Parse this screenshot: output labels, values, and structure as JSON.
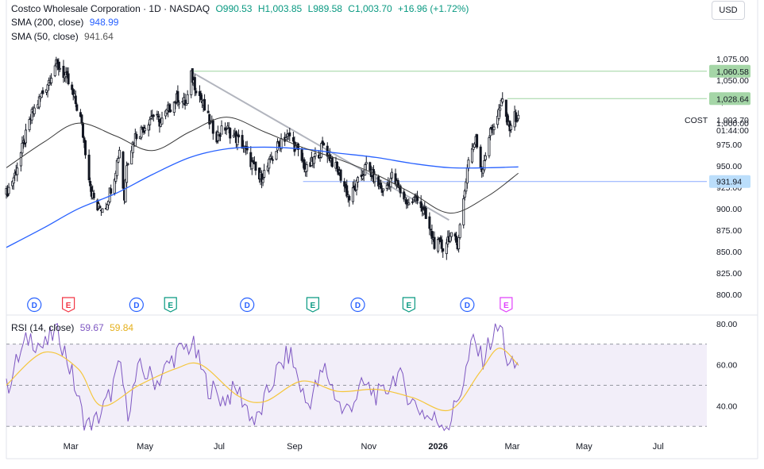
{
  "header": {
    "symbol_name": "Costco Wholesale Corporation · 1D · NASDAQ",
    "open": "O990.53",
    "high": "H1,003.85",
    "low": "L989.58",
    "close": "C1,003.70",
    "change": "+16.96 (+1.72%)",
    "sma200_label": "SMA (200, close)",
    "sma200_value": "948.99",
    "sma50_label": "SMA (50, close)",
    "sma50_value": "941.64",
    "rsi_label": "RSI (14, close)",
    "rsi_value": "59.67",
    "rsi_ma_value": "59.84",
    "currency": "USD"
  },
  "colors": {
    "up": "#131722",
    "down": "#131722",
    "sma200": "#2962ff",
    "sma50": "#3a3a3a",
    "rsi": "#7e57c2",
    "rsi_ma": "#f5c63c",
    "level_green": "#4caf50",
    "level_blue": "#2962ff",
    "dividend": "#2962ff",
    "earnings_red": "#f23645",
    "earnings_green": "#089981",
    "earnings_pink": "#e040fb"
  },
  "price_axis": {
    "ticks": [
      "1,075.00",
      "1,050.00",
      "1,025.00",
      "1,000.00",
      "975.00",
      "950.00",
      "925.00",
      "900.00",
      "875.00",
      "850.00",
      "825.00",
      "800.00"
    ],
    "tick_values": [
      1075,
      1050,
      1025,
      1000,
      975,
      950,
      925,
      900,
      875,
      850,
      825,
      800
    ],
    "range": [
      790,
      1090
    ],
    "tag_1060": "1,060.58",
    "tag_1028": "1,028.64",
    "tag_931": "931.94",
    "last_symbol": "COST",
    "last_price": "1,003.70",
    "countdown": "01:44:00"
  },
  "rsi_axis": {
    "ticks": [
      "80.00",
      "60.00",
      "40.00"
    ],
    "tick_values": [
      80,
      60,
      40
    ],
    "range": [
      27,
      83
    ],
    "upper_band": 70,
    "mid": 50,
    "lower_band": 30
  },
  "time_axis": {
    "labels": [
      "Mar",
      "May",
      "Jul",
      "Sep",
      "Nov",
      "2026",
      "Mar",
      "May",
      "Jul"
    ],
    "label_days": [
      53,
      114,
      175,
      237,
      298,
      355,
      416,
      475,
      536
    ]
  },
  "events": [
    {
      "type": "D",
      "day": 23
    },
    {
      "type": "E",
      "day": 51
    },
    {
      "type": "D",
      "day": 107
    },
    {
      "type": "E",
      "day": 135
    },
    {
      "type": "D",
      "day": 198
    },
    {
      "type": "E",
      "day": 252
    },
    {
      "type": "D",
      "day": 289
    },
    {
      "type": "E",
      "day": 331
    },
    {
      "type": "D",
      "day": 379
    },
    {
      "type": "E",
      "day": 411
    }
  ],
  "chart_data": {
    "type": "candlestick",
    "title": "Costco Wholesale Corporation · 1D · NASDAQ",
    "x_start": "2025-01-01",
    "x_end": "2026-07-31",
    "levels": [
      {
        "value": 1060.58,
        "from": "2025-06-02",
        "to": "2026-07-31"
      },
      {
        "value": 1028.64,
        "from": "2026-02-17",
        "to": "2026-07-31"
      },
      {
        "value": 931.94,
        "from": "2025-09-02",
        "to": "2026-07-31"
      }
    ],
    "trendline": {
      "from": {
        "date": "2025-06-02",
        "value": 1060
      },
      "to": {
        "date": "2025-12-31",
        "value": 887
      }
    },
    "close_path": [
      {
        "date": "2025-01-01",
        "value": 918
      },
      {
        "date": "2025-01-08",
        "value": 940
      },
      {
        "date": "2025-01-15",
        "value": 975
      },
      {
        "date": "2025-01-22",
        "value": 1010
      },
      {
        "date": "2025-01-29",
        "value": 1030
      },
      {
        "date": "2025-02-05",
        "value": 1050
      },
      {
        "date": "2025-02-10",
        "value": 1068
      },
      {
        "date": "2025-02-14",
        "value": 1065
      },
      {
        "date": "2025-02-20",
        "value": 1050
      },
      {
        "date": "2025-02-26",
        "value": 1028
      },
      {
        "date": "2025-03-03",
        "value": 1005
      },
      {
        "date": "2025-03-07",
        "value": 968
      },
      {
        "date": "2025-03-12",
        "value": 920
      },
      {
        "date": "2025-03-17",
        "value": 900
      },
      {
        "date": "2025-03-24",
        "value": 905
      },
      {
        "date": "2025-03-31",
        "value": 940
      },
      {
        "date": "2025-04-04",
        "value": 970
      },
      {
        "date": "2025-04-08",
        "value": 912
      },
      {
        "date": "2025-04-10",
        "value": 955
      },
      {
        "date": "2025-04-17",
        "value": 985
      },
      {
        "date": "2025-04-24",
        "value": 995
      },
      {
        "date": "2025-05-01",
        "value": 1010
      },
      {
        "date": "2025-05-08",
        "value": 1000
      },
      {
        "date": "2025-05-15",
        "value": 1018
      },
      {
        "date": "2025-05-22",
        "value": 1030
      },
      {
        "date": "2025-05-29",
        "value": 1022
      },
      {
        "date": "2025-06-02",
        "value": 1055
      },
      {
        "date": "2025-06-09",
        "value": 1032
      },
      {
        "date": "2025-06-16",
        "value": 1005
      },
      {
        "date": "2025-06-23",
        "value": 985
      },
      {
        "date": "2025-06-30",
        "value": 995
      },
      {
        "date": "2025-07-07",
        "value": 985
      },
      {
        "date": "2025-07-14",
        "value": 975
      },
      {
        "date": "2025-07-21",
        "value": 955
      },
      {
        "date": "2025-07-28",
        "value": 935
      },
      {
        "date": "2025-08-01",
        "value": 942
      },
      {
        "date": "2025-08-08",
        "value": 960
      },
      {
        "date": "2025-08-15",
        "value": 982
      },
      {
        "date": "2025-08-22",
        "value": 985
      },
      {
        "date": "2025-08-29",
        "value": 965
      },
      {
        "date": "2025-09-05",
        "value": 945
      },
      {
        "date": "2025-09-12",
        "value": 960
      },
      {
        "date": "2025-09-19",
        "value": 975
      },
      {
        "date": "2025-09-26",
        "value": 955
      },
      {
        "date": "2025-10-03",
        "value": 938
      },
      {
        "date": "2025-10-10",
        "value": 912
      },
      {
        "date": "2025-10-17",
        "value": 930
      },
      {
        "date": "2025-10-24",
        "value": 950
      },
      {
        "date": "2025-10-31",
        "value": 935
      },
      {
        "date": "2025-11-07",
        "value": 920
      },
      {
        "date": "2025-11-14",
        "value": 938
      },
      {
        "date": "2025-11-21",
        "value": 920
      },
      {
        "date": "2025-11-28",
        "value": 905
      },
      {
        "date": "2025-12-05",
        "value": 915
      },
      {
        "date": "2025-12-12",
        "value": 888
      },
      {
        "date": "2025-12-19",
        "value": 860
      },
      {
        "date": "2025-12-26",
        "value": 855
      },
      {
        "date": "2025-12-31",
        "value": 868
      },
      {
        "date": "2026-01-07",
        "value": 860
      },
      {
        "date": "2026-01-12",
        "value": 910
      },
      {
        "date": "2026-01-16",
        "value": 960
      },
      {
        "date": "2026-01-22",
        "value": 980
      },
      {
        "date": "2026-01-27",
        "value": 945
      },
      {
        "date": "2026-02-02",
        "value": 985
      },
      {
        "date": "2026-02-09",
        "value": 1010
      },
      {
        "date": "2026-02-13",
        "value": 1025
      },
      {
        "date": "2026-02-18",
        "value": 995
      },
      {
        "date": "2026-02-23",
        "value": 1008
      },
      {
        "date": "2026-02-26",
        "value": 1003.7
      }
    ],
    "sma200": [
      {
        "date": "2025-01-01",
        "value": 855
      },
      {
        "date": "2025-02-01",
        "value": 878
      },
      {
        "date": "2025-03-01",
        "value": 900
      },
      {
        "date": "2025-04-01",
        "value": 918
      },
      {
        "date": "2025-05-01",
        "value": 940
      },
      {
        "date": "2025-06-01",
        "value": 960
      },
      {
        "date": "2025-07-01",
        "value": 970
      },
      {
        "date": "2025-08-01",
        "value": 972
      },
      {
        "date": "2025-09-01",
        "value": 970
      },
      {
        "date": "2025-10-01",
        "value": 965
      },
      {
        "date": "2025-11-01",
        "value": 960
      },
      {
        "date": "2025-12-01",
        "value": 953
      },
      {
        "date": "2026-01-01",
        "value": 948
      },
      {
        "date": "2026-02-01",
        "value": 948
      },
      {
        "date": "2026-02-26",
        "value": 948.99
      }
    ],
    "sma50": [
      {
        "date": "2025-01-01",
        "value": 948
      },
      {
        "date": "2025-02-01",
        "value": 978
      },
      {
        "date": "2025-03-01",
        "value": 1000
      },
      {
        "date": "2025-04-01",
        "value": 985
      },
      {
        "date": "2025-05-01",
        "value": 968
      },
      {
        "date": "2025-06-01",
        "value": 990
      },
      {
        "date": "2025-07-01",
        "value": 1007
      },
      {
        "date": "2025-08-01",
        "value": 990
      },
      {
        "date": "2025-09-01",
        "value": 972
      },
      {
        "date": "2025-10-01",
        "value": 958
      },
      {
        "date": "2025-11-01",
        "value": 940
      },
      {
        "date": "2025-12-01",
        "value": 918
      },
      {
        "date": "2026-01-01",
        "value": 895
      },
      {
        "date": "2026-02-01",
        "value": 915
      },
      {
        "date": "2026-02-26",
        "value": 941.64
      }
    ],
    "rsi": [
      {
        "date": "2025-01-01",
        "value": 48
      },
      {
        "date": "2025-01-10",
        "value": 62
      },
      {
        "date": "2025-01-20",
        "value": 74
      },
      {
        "date": "2025-02-01",
        "value": 68
      },
      {
        "date": "2025-02-12",
        "value": 78
      },
      {
        "date": "2025-02-24",
        "value": 55
      },
      {
        "date": "2025-03-05",
        "value": 34
      },
      {
        "date": "2025-03-12",
        "value": 29
      },
      {
        "date": "2025-03-25",
        "value": 42
      },
      {
        "date": "2025-04-05",
        "value": 60
      },
      {
        "date": "2025-04-10",
        "value": 36
      },
      {
        "date": "2025-04-20",
        "value": 58
      },
      {
        "date": "2025-05-05",
        "value": 52
      },
      {
        "date": "2025-05-20",
        "value": 65
      },
      {
        "date": "2025-06-03",
        "value": 70
      },
      {
        "date": "2025-06-15",
        "value": 50
      },
      {
        "date": "2025-06-28",
        "value": 43
      },
      {
        "date": "2025-07-10",
        "value": 48
      },
      {
        "date": "2025-07-25",
        "value": 31
      },
      {
        "date": "2025-08-10",
        "value": 55
      },
      {
        "date": "2025-08-22",
        "value": 66
      },
      {
        "date": "2025-09-05",
        "value": 40
      },
      {
        "date": "2025-09-20",
        "value": 58
      },
      {
        "date": "2025-10-05",
        "value": 36
      },
      {
        "date": "2025-10-22",
        "value": 50
      },
      {
        "date": "2025-11-05",
        "value": 44
      },
      {
        "date": "2025-11-18",
        "value": 56
      },
      {
        "date": "2025-12-01",
        "value": 42
      },
      {
        "date": "2025-12-15",
        "value": 34
      },
      {
        "date": "2025-12-31",
        "value": 31
      },
      {
        "date": "2026-01-12",
        "value": 52
      },
      {
        "date": "2026-01-20",
        "value": 72
      },
      {
        "date": "2026-01-27",
        "value": 62
      },
      {
        "date": "2026-02-05",
        "value": 74
      },
      {
        "date": "2026-02-12",
        "value": 79
      },
      {
        "date": "2026-02-18",
        "value": 58
      },
      {
        "date": "2026-02-26",
        "value": 59.67
      }
    ],
    "rsi_ma": [
      {
        "date": "2025-01-01",
        "value": 50
      },
      {
        "date": "2025-02-01",
        "value": 66
      },
      {
        "date": "2025-03-01",
        "value": 58
      },
      {
        "date": "2025-03-20",
        "value": 40
      },
      {
        "date": "2025-04-20",
        "value": 50
      },
      {
        "date": "2025-05-20",
        "value": 58
      },
      {
        "date": "2025-06-10",
        "value": 60
      },
      {
        "date": "2025-07-10",
        "value": 45
      },
      {
        "date": "2025-08-01",
        "value": 42
      },
      {
        "date": "2025-09-01",
        "value": 52
      },
      {
        "date": "2025-10-01",
        "value": 47
      },
      {
        "date": "2025-11-01",
        "value": 48
      },
      {
        "date": "2025-12-01",
        "value": 44
      },
      {
        "date": "2026-01-01",
        "value": 38
      },
      {
        "date": "2026-01-25",
        "value": 56
      },
      {
        "date": "2026-02-10",
        "value": 68
      },
      {
        "date": "2026-02-26",
        "value": 59.84
      }
    ]
  }
}
